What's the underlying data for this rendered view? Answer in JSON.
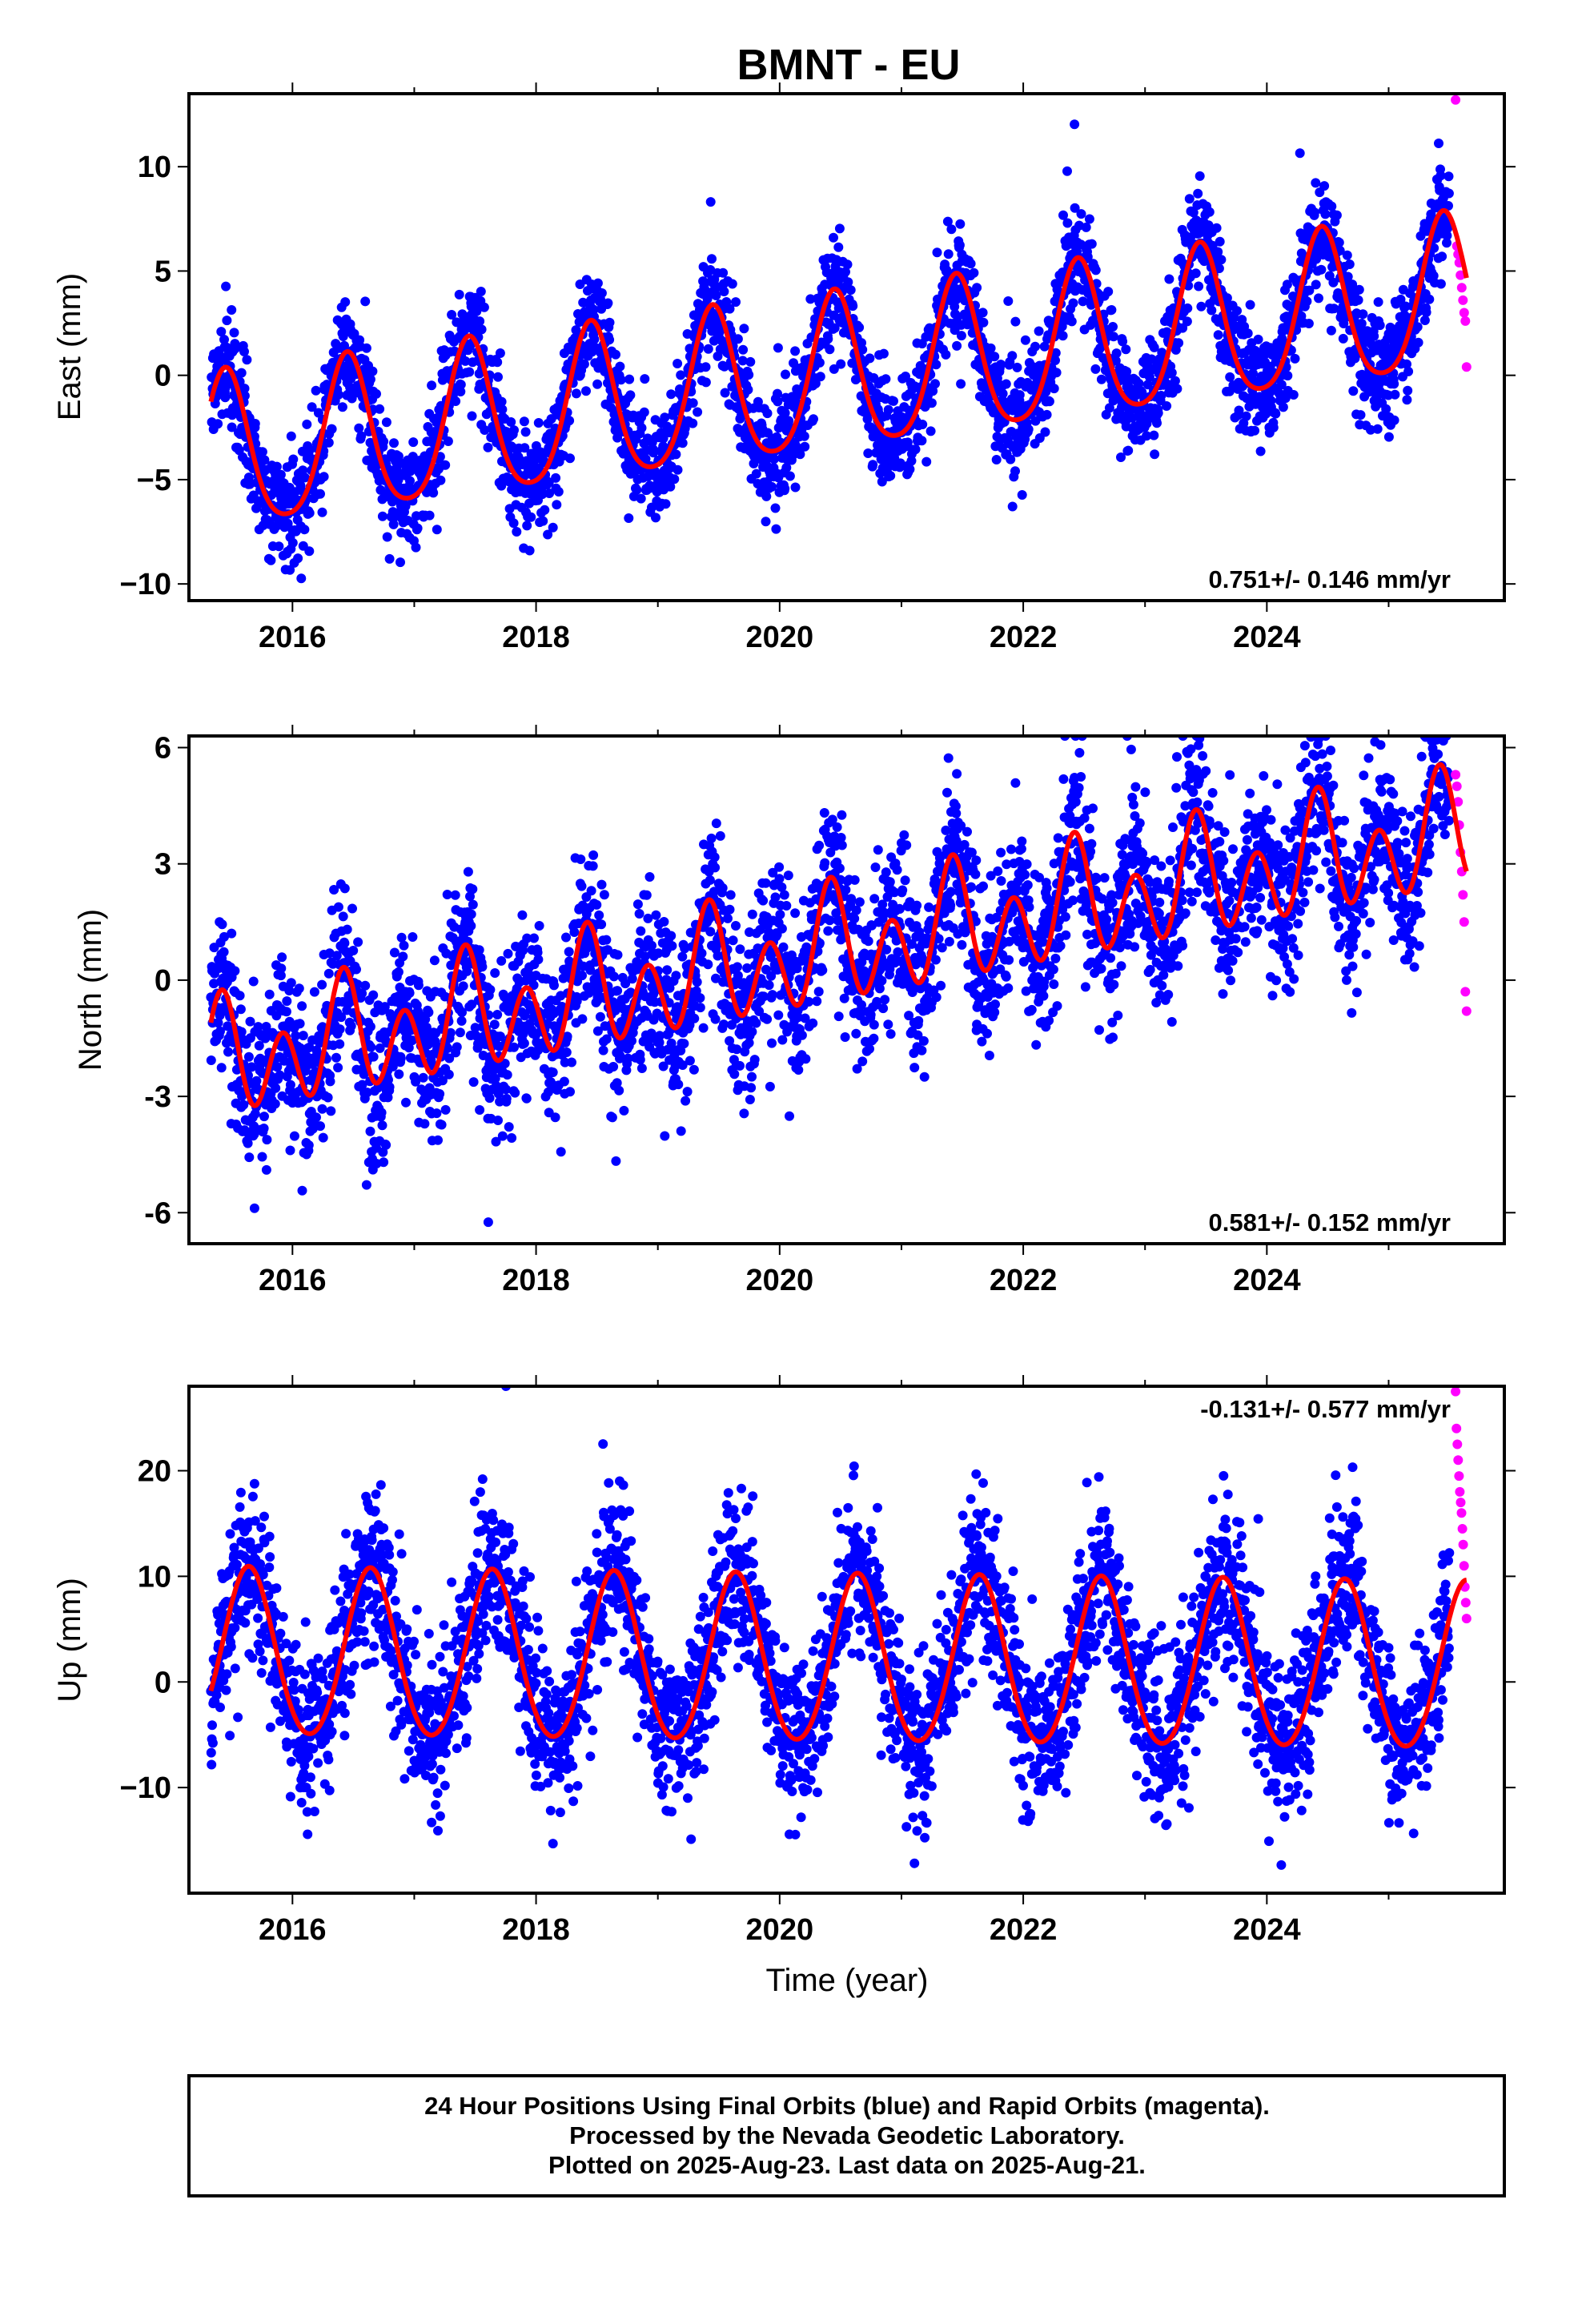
{
  "chart_data": {
    "type": "scatter",
    "title": "BMNT - EU",
    "xlabel": "Time (year)",
    "xlim": [
      2015.15,
      2025.95
    ],
    "x_ticks": [
      "2016",
      "2018",
      "2020",
      "2022",
      "2024"
    ],
    "grid": false,
    "first_data": 2015.33,
    "final_end": 2025.5,
    "last_data": 2025.64,
    "panels": [
      {
        "ylabel": "East (mm)",
        "ylim": [
          -10.8,
          13.5
        ],
        "y_ticks": [
          "−10",
          "−5",
          "0",
          "5",
          "10"
        ],
        "y_tick_values": [
          -10,
          -5,
          0,
          5,
          10
        ],
        "rate": "0.751+/- 0.146 mm/yr",
        "model": {
          "a0": -4.0,
          "trend": 0.751,
          "ann": 3.7,
          "annPeak": 0.45,
          "semi": 0.6,
          "semiPeak": 0.95,
          "ref": 2015.33
        },
        "scatter_sd": 1.3,
        "final_series_name": "Final Orbits",
        "rapid_series_name": "Rapid Orbits",
        "rapid_values": [
          13.2,
          6.2,
          5.8,
          5.4,
          4.8,
          4.2,
          3.6,
          3.0,
          2.6,
          0.4
        ]
      },
      {
        "ylabel": "North (mm)",
        "ylim": [
          -6.8,
          6.3
        ],
        "y_ticks": [
          "-6",
          "-3",
          "0",
          "3",
          "6"
        ],
        "y_tick_values": [
          -6,
          -3,
          0,
          3,
          6
        ],
        "rate": "0.581+/- 0.152 mm/yr",
        "model": {
          "a0": -2.2,
          "trend": 0.581,
          "ann": 0.7,
          "annPeak": 0.42,
          "semi": 1.2,
          "semiPeak": 0.42,
          "ref": 2015.33
        },
        "scatter_sd": 1.05,
        "final_series_name": "Final Orbits",
        "rapid_series_name": "Rapid Orbits",
        "rapid_values": [
          5.3,
          5.0,
          4.6,
          4.0,
          3.3,
          2.8,
          2.2,
          1.5,
          -0.3,
          -0.8
        ]
      },
      {
        "ylabel": "Up (mm)",
        "ylim": [
          -20,
          28
        ],
        "y_ticks": [
          "−10",
          "0",
          "10",
          "20"
        ],
        "y_tick_values": [
          -10,
          0,
          10,
          20
        ],
        "rate": "-0.131+/- 0.577 mm/yr",
        "model": {
          "a0": 2.5,
          "trend": -0.131,
          "ann": 7.9,
          "annPeak": 0.64,
          "semi": 0.6,
          "semiPeak": 0.64,
          "ref": 2015.33
        },
        "scatter_sd": 3.8,
        "final_series_name": "Final Orbits",
        "rapid_series_name": "Rapid Orbits",
        "rapid_values": [
          27.5,
          24.0,
          22.5,
          21.0,
          19.5,
          18.0,
          17.0,
          16.0,
          14.5,
          13.0,
          11.0,
          9.0,
          7.5,
          6.0
        ]
      }
    ],
    "colors": {
      "final": "#0000ff",
      "rapid": "#ff00ff",
      "model": "#ff0000",
      "frame": "#000000"
    }
  },
  "footer": {
    "line1": "24 Hour Positions Using Final Orbits (blue) and Rapid Orbits (magenta).",
    "line2": "Processed by the Nevada Geodetic Laboratory.",
    "line3": "Plotted on 2025-Aug-23. Last data on 2025-Aug-21."
  }
}
